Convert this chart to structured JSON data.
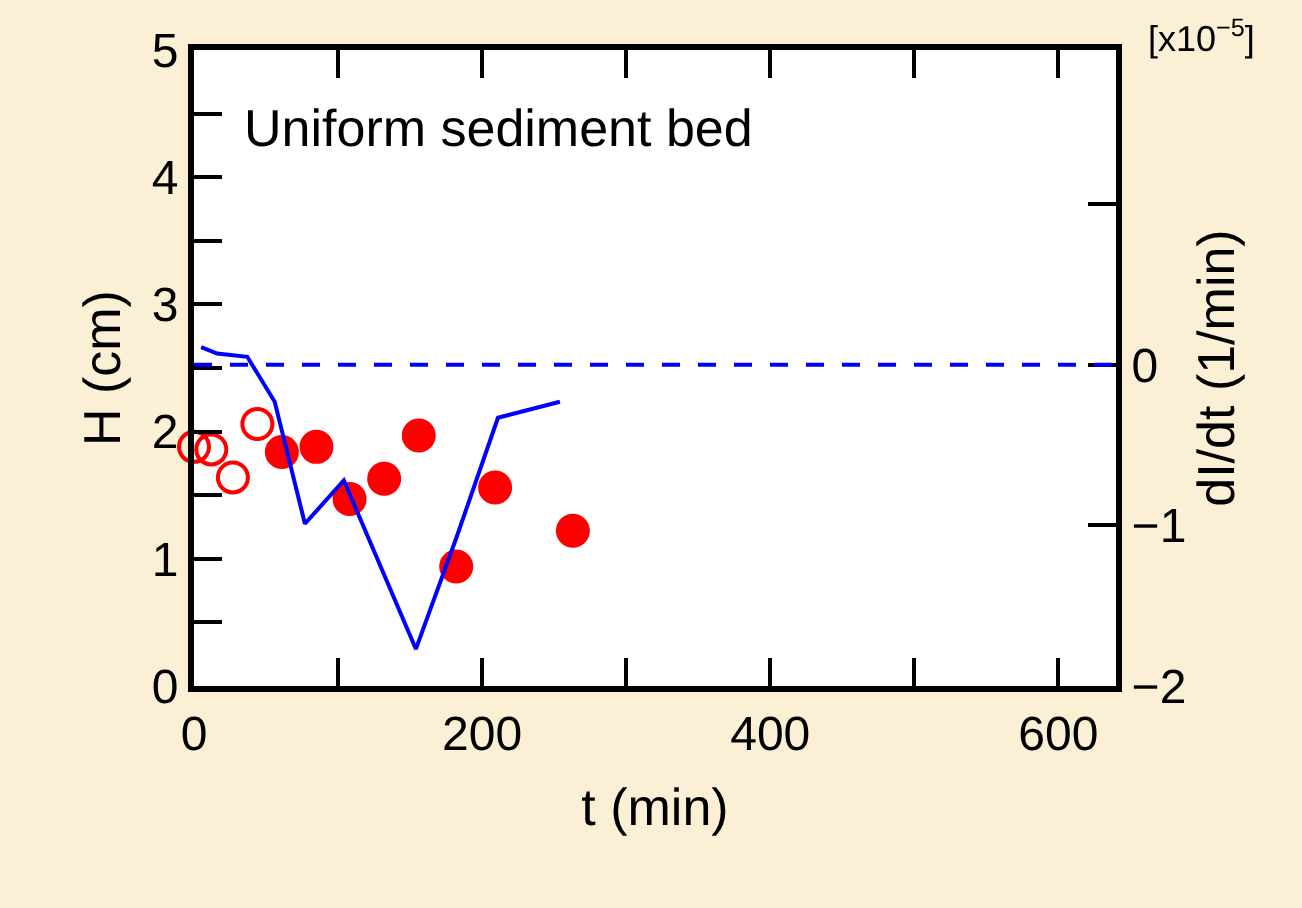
{
  "chart_data": {
    "type": "scatter",
    "xlabel": "t (min)",
    "ylabel": "H (cm)",
    "y2label": "dI/dt (1/min)",
    "annotations": [
      "Uniform sediment bed",
      "[x10$^{−5}$]"
    ],
    "xlim": [
      0,
      640
    ],
    "xticks": [
      0,
      {
        "value": 100,
        "label": null
      },
      200,
      {
        "value": 300,
        "label": null
      },
      400,
      {
        "value": 500,
        "label": null
      },
      600
    ],
    "ylim": [
      0,
      5
    ],
    "yticks": [
      0,
      {
        "value": 0.5,
        "label": null
      },
      1,
      {
        "value": 1.5,
        "label": null
      },
      2,
      {
        "value": 2.5,
        "label": null
      },
      3,
      {
        "value": 3.5,
        "label": null
      },
      4,
      {
        "value": 4.5,
        "label": null
      },
      5
    ],
    "y2lim": [
      -2,
      1.96
    ],
    "y2ticks": [
      {
        "value": -2,
        "label": "−2"
      },
      {
        "value": -1,
        "label": "−1"
      },
      0,
      {
        "value": 1,
        "label": null
      }
    ],
    "ref_lines": [
      {
        "axis": "y2",
        "value": 0,
        "color": "#0000ff",
        "line_style": "dashed"
      }
    ],
    "series": [
      {
        "type": "scatter",
        "marker": "circle-open",
        "color": "#ff0000",
        "x": [
          0,
          12,
          27,
          44
        ],
        "values": [
          1.88,
          1.86,
          1.64,
          2.06
        ]
      },
      {
        "marker": "circle",
        "color": "#ff0000",
        "x": [
          61,
          85,
          108,
          132,
          156,
          182,
          209,
          263
        ],
        "values": [
          1.84,
          1.88,
          1.47,
          1.63,
          1.97,
          0.94,
          1.56,
          1.22
        ]
      },
      {
        "type": "line",
        "marker": "none",
        "axis": "y2",
        "color": "#0000ff",
        "line_style": "solid",
        "x": [
          5,
          16,
          37,
          56,
          77,
          104,
          154,
          182,
          211,
          254
        ],
        "values": [
          0.11,
          0.07,
          0.05,
          -0.23,
          -0.99,
          -0.72,
          -1.77,
          -1.08,
          -0.33,
          -0.23
        ]
      }
    ]
  }
}
